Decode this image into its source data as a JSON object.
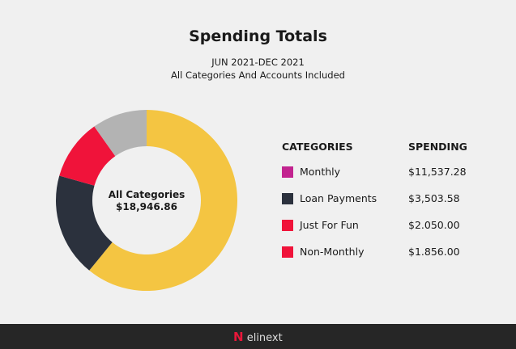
{
  "header": {
    "title": "Spending Totals",
    "date_range": "JUN 2021-DEC 2021",
    "scope": "All Categories And Accounts Included"
  },
  "chart_data": {
    "type": "pie",
    "variant": "donut",
    "title": "Spending Totals",
    "center_label": "All Categories",
    "center_value": "$18,946.86",
    "categories": [
      "Monthly",
      "Loan Payments",
      "Just For Fun",
      "Non-Monthly"
    ],
    "values": [
      11537.28,
      3503.58,
      2050.0,
      1856.0
    ],
    "slice_colors": [
      "#f4c542",
      "#2b313d",
      "#f0133a",
      "#b3b3b3"
    ],
    "legend_colors": [
      "#c2238f",
      "#2b313d",
      "#f0133a",
      "#f0133a"
    ],
    "legend_placement": "right"
  },
  "legend": {
    "col_categories": "CATEGORIES",
    "col_spending": "SPENDING",
    "rows": [
      {
        "label": "Monthly",
        "value": "$11,537.28"
      },
      {
        "label": "Loan Payments",
        "value": "$3,503.58"
      },
      {
        "label": "Just For Fun",
        "value": "$2.050.00"
      },
      {
        "label": "Non-Monthly",
        "value": "$1.856.00"
      }
    ]
  },
  "footer": {
    "logo": "elinext"
  }
}
